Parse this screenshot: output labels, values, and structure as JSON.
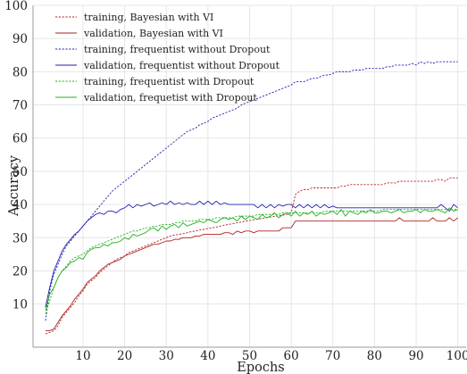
{
  "chart_data": {
    "type": "line",
    "title": "",
    "xlabel": "Epochs",
    "ylabel": "Accuracy",
    "xlim": [
      -2,
      102
    ],
    "ylim": [
      -3,
      100
    ],
    "xticks": [
      10,
      20,
      30,
      40,
      50,
      60,
      70,
      80,
      90,
      100
    ],
    "yticks": [
      10,
      20,
      30,
      40,
      50,
      60,
      70,
      80,
      90,
      100
    ],
    "grid": true,
    "legend_position": "top-left",
    "x": [
      1,
      2,
      3,
      4,
      5,
      6,
      7,
      8,
      9,
      10,
      11,
      12,
      13,
      14,
      15,
      16,
      17,
      18,
      19,
      20,
      21,
      22,
      23,
      24,
      25,
      26,
      27,
      28,
      29,
      30,
      31,
      32,
      33,
      34,
      35,
      36,
      37,
      38,
      39,
      40,
      41,
      42,
      43,
      44,
      45,
      46,
      47,
      48,
      49,
      50,
      51,
      52,
      53,
      54,
      55,
      56,
      57,
      58,
      59,
      60,
      61,
      62,
      63,
      64,
      65,
      66,
      67,
      68,
      69,
      70,
      71,
      72,
      73,
      74,
      75,
      76,
      77,
      78,
      79,
      80,
      81,
      82,
      83,
      84,
      85,
      86,
      87,
      88,
      89,
      90,
      91,
      92,
      93,
      94,
      95,
      96,
      97,
      98,
      99,
      100
    ],
    "series": [
      {
        "name": "training, Bayesian with VI",
        "color": "#b22222",
        "dashed": true,
        "values": [
          1.0,
          1.5,
          2.0,
          3.5,
          6.0,
          7.5,
          9.0,
          10.5,
          12.5,
          14.0,
          16.0,
          17.0,
          18.0,
          19.5,
          20.5,
          21.5,
          22.5,
          23.5,
          24.0,
          24.5,
          25.5,
          26.0,
          26.5,
          27.0,
          27.5,
          28.0,
          28.5,
          29.0,
          29.5,
          30.0,
          30.5,
          30.8,
          31.0,
          31.2,
          31.5,
          31.8,
          32.0,
          32.3,
          32.5,
          32.8,
          33.0,
          33.2,
          33.5,
          33.8,
          34.0,
          34.2,
          34.5,
          34.7,
          35.0,
          35.2,
          35.4,
          35.6,
          35.8,
          36.0,
          36.2,
          36.4,
          36.6,
          36.8,
          37.0,
          37.5,
          43.0,
          44.0,
          44.5,
          44.5,
          45.0,
          45.0,
          45.0,
          45.0,
          45.0,
          45.0,
          45.0,
          45.5,
          45.5,
          46.0,
          46.0,
          46.0,
          46.0,
          46.0,
          46.0,
          46.0,
          46.0,
          46.0,
          46.5,
          46.5,
          46.5,
          47.0,
          47.0,
          47.0,
          47.0,
          47.0,
          47.0,
          47.0,
          47.0,
          47.0,
          47.5,
          47.5,
          47.0,
          48.0,
          48.0,
          48.0
        ]
      },
      {
        "name": "validation, Bayesian with VI",
        "color": "#b22222",
        "dashed": false,
        "values": [
          2.0,
          2.0,
          2.5,
          4.5,
          6.5,
          8.0,
          9.5,
          11.5,
          13.0,
          14.5,
          16.5,
          17.5,
          18.5,
          20.0,
          21.0,
          22.0,
          22.5,
          23.0,
          23.5,
          24.5,
          25.0,
          25.5,
          26.0,
          26.5,
          27.0,
          27.5,
          28.0,
          28.0,
          28.5,
          29.0,
          29.0,
          29.5,
          29.5,
          30.0,
          30.0,
          30.0,
          30.5,
          30.5,
          31.0,
          31.0,
          31.0,
          31.0,
          31.0,
          31.5,
          31.5,
          31.0,
          32.0,
          31.5,
          32.0,
          32.0,
          31.5,
          32.0,
          32.0,
          32.0,
          32.0,
          32.0,
          32.0,
          33.0,
          33.0,
          33.0,
          35.0,
          35.0,
          35.0,
          35.0,
          35.0,
          35.0,
          35.0,
          35.0,
          35.0,
          35.0,
          35.0,
          35.0,
          35.0,
          35.0,
          35.0,
          35.0,
          35.0,
          35.0,
          35.0,
          35.0,
          35.0,
          35.0,
          35.0,
          35.0,
          35.0,
          36.0,
          35.0,
          35.0,
          35.0,
          35.0,
          35.0,
          35.0,
          35.0,
          36.0,
          35.0,
          35.0,
          35.0,
          36.0,
          35.0,
          36.0
        ]
      },
      {
        "name": "training, frequentist without Dropout",
        "color": "#2222b2",
        "dashed": true,
        "values": [
          5.0,
          14.0,
          19.0,
          22.0,
          25.0,
          27.5,
          29.0,
          30.5,
          32.0,
          33.5,
          35.0,
          36.5,
          38.0,
          39.5,
          41.0,
          42.5,
          44.0,
          45.0,
          46.0,
          47.0,
          48.0,
          49.0,
          50.0,
          51.0,
          52.0,
          53.0,
          54.0,
          55.0,
          56.0,
          57.0,
          58.0,
          59.0,
          60.0,
          61.0,
          62.0,
          62.5,
          63.0,
          64.0,
          64.5,
          65.0,
          66.0,
          66.5,
          67.0,
          67.5,
          68.0,
          68.5,
          69.0,
          70.0,
          70.5,
          71.0,
          71.5,
          72.0,
          72.5,
          73.0,
          73.5,
          74.0,
          74.5,
          75.0,
          75.5,
          76.0,
          77.0,
          77.0,
          77.0,
          77.5,
          78.0,
          78.0,
          78.5,
          79.0,
          79.0,
          79.5,
          80.0,
          80.0,
          80.0,
          80.0,
          80.5,
          80.5,
          80.5,
          81.0,
          81.0,
          81.0,
          81.0,
          81.0,
          81.5,
          81.5,
          82.0,
          82.0,
          82.0,
          82.0,
          82.5,
          82.0,
          83.0,
          82.5,
          83.0,
          82.5,
          83.0,
          83.0,
          83.0,
          83.0,
          83.0,
          83.0
        ]
      },
      {
        "name": "validation, frequentist without Dropout",
        "color": "#2222b2",
        "dashed": false,
        "values": [
          9.0,
          15.0,
          20.0,
          23.0,
          26.0,
          28.0,
          29.5,
          31.0,
          32.0,
          33.5,
          35.0,
          36.0,
          37.0,
          37.5,
          37.0,
          38.0,
          38.0,
          37.5,
          38.5,
          39.0,
          40.0,
          39.0,
          40.0,
          39.5,
          40.0,
          40.5,
          39.5,
          40.0,
          40.5,
          40.0,
          41.0,
          40.0,
          40.5,
          40.0,
          40.5,
          40.0,
          40.0,
          41.0,
          40.0,
          41.0,
          40.0,
          41.0,
          40.0,
          40.5,
          40.0,
          40.0,
          40.0,
          40.0,
          40.0,
          40.0,
          40.0,
          39.0,
          40.0,
          39.0,
          40.0,
          39.0,
          40.0,
          39.5,
          40.0,
          40.0,
          39.0,
          40.0,
          39.0,
          40.0,
          39.0,
          40.0,
          39.0,
          40.0,
          39.0,
          39.5,
          39.0,
          39.0,
          39.0,
          39.0,
          39.0,
          39.0,
          39.0,
          39.0,
          39.0,
          39.0,
          39.0,
          39.0,
          39.0,
          39.0,
          39.0,
          39.0,
          39.0,
          39.0,
          39.0,
          39.0,
          39.0,
          39.0,
          39.0,
          39.0,
          39.0,
          40.0,
          39.0,
          38.0,
          40.0,
          39.0
        ]
      },
      {
        "name": "training, frequentist with Dropout",
        "color": "#22b222",
        "dashed": true,
        "values": [
          7.0,
          11.0,
          15.0,
          18.0,
          20.0,
          21.5,
          23.0,
          24.0,
          24.5,
          25.0,
          26.0,
          27.0,
          27.5,
          28.0,
          28.5,
          29.0,
          29.5,
          30.0,
          30.5,
          31.0,
          31.5,
          32.0,
          32.0,
          32.5,
          33.0,
          33.0,
          33.5,
          33.5,
          34.0,
          34.0,
          34.0,
          34.5,
          34.5,
          35.0,
          35.0,
          35.0,
          35.0,
          35.5,
          35.5,
          35.5,
          35.5,
          36.0,
          36.0,
          36.0,
          36.0,
          36.0,
          36.5,
          36.5,
          36.5,
          36.5,
          36.5,
          37.0,
          37.0,
          37.0,
          37.0,
          37.0,
          37.0,
          37.5,
          37.5,
          37.5,
          37.5,
          37.5,
          37.5,
          37.5,
          37.5,
          37.5,
          37.5,
          38.0,
          38.0,
          38.0,
          38.0,
          38.0,
          38.0,
          38.0,
          38.0,
          38.0,
          38.0,
          38.0,
          38.0,
          38.0,
          38.0,
          38.5,
          38.5,
          38.5,
          38.5,
          38.5,
          38.5,
          38.5,
          38.5,
          38.5,
          38.5,
          38.5,
          38.5,
          38.5,
          38.5,
          38.5,
          38.5,
          38.5,
          38.5,
          38.5
        ]
      },
      {
        "name": "validation, frequetist with Dropout",
        "color": "#22b222",
        "dashed": false,
        "values": [
          8.0,
          13.0,
          15.0,
          18.0,
          20.0,
          21.0,
          22.5,
          23.0,
          24.0,
          23.5,
          25.5,
          26.5,
          27.0,
          27.0,
          28.0,
          27.5,
          28.5,
          28.5,
          29.0,
          30.0,
          29.5,
          31.0,
          30.5,
          31.0,
          31.5,
          32.5,
          33.0,
          32.0,
          33.5,
          32.5,
          33.5,
          34.0,
          33.0,
          34.5,
          33.5,
          34.0,
          34.5,
          35.0,
          34.5,
          35.5,
          35.0,
          34.5,
          35.5,
          36.0,
          35.5,
          36.0,
          35.0,
          36.5,
          35.5,
          36.5,
          36.0,
          35.5,
          37.0,
          36.0,
          36.5,
          37.5,
          36.0,
          37.0,
          37.5,
          36.5,
          38.0,
          36.5,
          37.5,
          37.0,
          38.0,
          36.5,
          37.5,
          37.0,
          37.5,
          38.0,
          37.0,
          38.5,
          36.5,
          38.0,
          37.5,
          37.0,
          38.0,
          37.5,
          38.5,
          37.5,
          37.5,
          38.0,
          38.0,
          37.5,
          38.0,
          38.5,
          37.5,
          38.0,
          38.0,
          38.5,
          37.5,
          38.5,
          38.0,
          38.0,
          38.5,
          38.0,
          37.5,
          39.0,
          38.0,
          38.5
        ]
      }
    ]
  }
}
